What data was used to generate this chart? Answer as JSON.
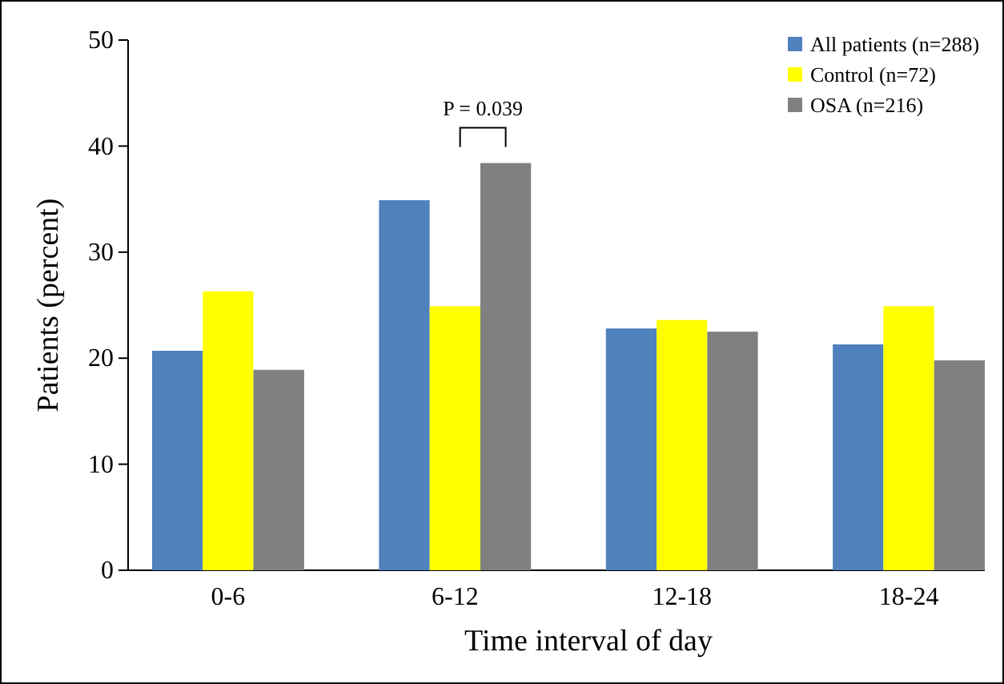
{
  "chart_data": {
    "type": "bar",
    "xlabel": "Time interval of day",
    "ylabel": "Patients (percent)",
    "categories": [
      "0-6",
      "6-12",
      "12-18",
      "18-24"
    ],
    "series": [
      {
        "name": "All patients (n=288)",
        "color": "#4f81bd",
        "values": [
          20.7,
          34.9,
          22.8,
          21.3
        ]
      },
      {
        "name": "Control (n=72)",
        "color": "#ffff00",
        "values": [
          26.3,
          24.9,
          23.6,
          24.9
        ]
      },
      {
        "name": "OSA (n=216)",
        "color": "#808080",
        "values": [
          18.9,
          38.4,
          22.5,
          19.8
        ]
      }
    ],
    "ylim": [
      0,
      50
    ],
    "yticks": [
      0,
      10,
      20,
      30,
      40,
      50
    ],
    "grid": false,
    "legend": "top right",
    "annotations": [
      "P = 0.039"
    ]
  }
}
